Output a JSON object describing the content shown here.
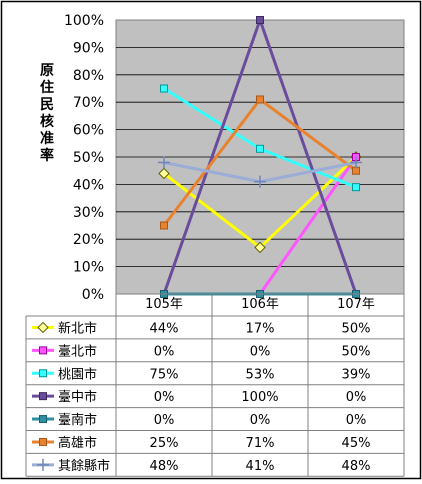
{
  "chart_data": {
    "type": "line",
    "ylabel": "原住民核准率",
    "categories": [
      "105年",
      "106年",
      "107年"
    ],
    "ylim": [
      0,
      100
    ],
    "y_ticks": [
      "0%",
      "10%",
      "20%",
      "30%",
      "40%",
      "50%",
      "60%",
      "70%",
      "80%",
      "90%",
      "100%"
    ],
    "grid": true,
    "legend_position": "table-below",
    "series": [
      {
        "name": "新北市",
        "values": [
          44,
          17,
          50
        ],
        "labels": [
          "44%",
          "17%",
          "50%"
        ],
        "color": "#ffff00",
        "marker": "diamond",
        "marker_fill": "#ffff99",
        "marker_stroke": "#5a5a00"
      },
      {
        "name": "臺北市",
        "values": [
          0,
          0,
          50
        ],
        "labels": [
          "0%",
          "0%",
          "50%"
        ],
        "color": "#ff55ff",
        "marker": "square",
        "marker_fill": "#ff55ff",
        "marker_stroke": "#a000a0"
      },
      {
        "name": "桃園市",
        "values": [
          75,
          53,
          39
        ],
        "labels": [
          "75%",
          "53%",
          "39%"
        ],
        "color": "#33ffff",
        "marker": "square",
        "marker_fill": "#33ffff",
        "marker_stroke": "#009999"
      },
      {
        "name": "臺中市",
        "values": [
          0,
          100,
          0
        ],
        "labels": [
          "0%",
          "100%",
          "0%"
        ],
        "color": "#6a4c9c",
        "marker": "square",
        "marker_fill": "#6a4c9c",
        "marker_stroke": "#3c2a5c"
      },
      {
        "name": "臺南市",
        "values": [
          0,
          0,
          0
        ],
        "labels": [
          "0%",
          "0%",
          "0%"
        ],
        "color": "#2f8fa3",
        "marker": "square",
        "marker_fill": "#2f8fa3",
        "marker_stroke": "#1d5f6e"
      },
      {
        "name": "高雄市",
        "values": [
          25,
          71,
          45
        ],
        "labels": [
          "25%",
          "71%",
          "45%"
        ],
        "color": "#e8822d",
        "marker": "square",
        "marker_fill": "#e8822d",
        "marker_stroke": "#a8571a"
      },
      {
        "name": "其餘縣市",
        "values": [
          48,
          41,
          48
        ],
        "labels": [
          "48%",
          "41%",
          "48%"
        ],
        "color": "#9bacd6",
        "marker": "plus",
        "marker_fill": "#9bacd6",
        "marker_stroke": "#7185b8"
      }
    ]
  }
}
